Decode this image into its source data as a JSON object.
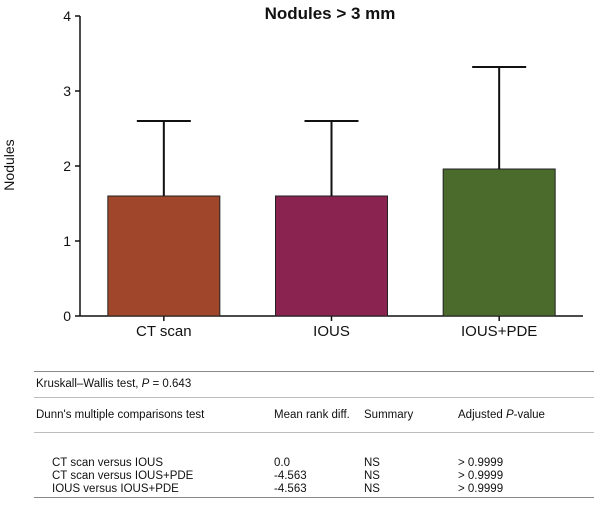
{
  "chart_data": {
    "type": "bar",
    "title": "Nodules > 3 mm",
    "ylabel": "Nodules",
    "xlabel": "",
    "ylim": [
      0,
      4
    ],
    "yticks": [
      "0",
      "1",
      "2",
      "3",
      "4"
    ],
    "categories": [
      "CT scan",
      "IOUS",
      "IOUS+PDE"
    ],
    "values": [
      1.6,
      1.6,
      1.96
    ],
    "error_upper": [
      2.6,
      2.6,
      3.32
    ],
    "colors": [
      "#a0462a",
      "#8a2350",
      "#4a6b2c"
    ],
    "grid": false,
    "legend": "none"
  },
  "stats": {
    "test_label": "Kruskall–Wallis test, ",
    "test_p_symbol": "P",
    "test_p_value": " = 0.643",
    "header": {
      "col1": "Dunn's multiple comparisons test",
      "col2": "Mean rank diff.",
      "col3": "Summary",
      "col4_prefix": "Adjusted ",
      "col4_italic": "P",
      "col4_suffix": "-value"
    },
    "rows": [
      {
        "comparison": "CT scan versus IOUS",
        "diff": "0.0",
        "summary": "NS",
        "p": "> 0.9999"
      },
      {
        "comparison": "CT scan versus IOUS+PDE",
        "diff": "-4.563",
        "summary": "NS",
        "p": "> 0.9999"
      },
      {
        "comparison": "IOUS versus IOUS+PDE",
        "diff": "-4.563",
        "summary": "NS",
        "p": "> 0.9999"
      }
    ]
  }
}
